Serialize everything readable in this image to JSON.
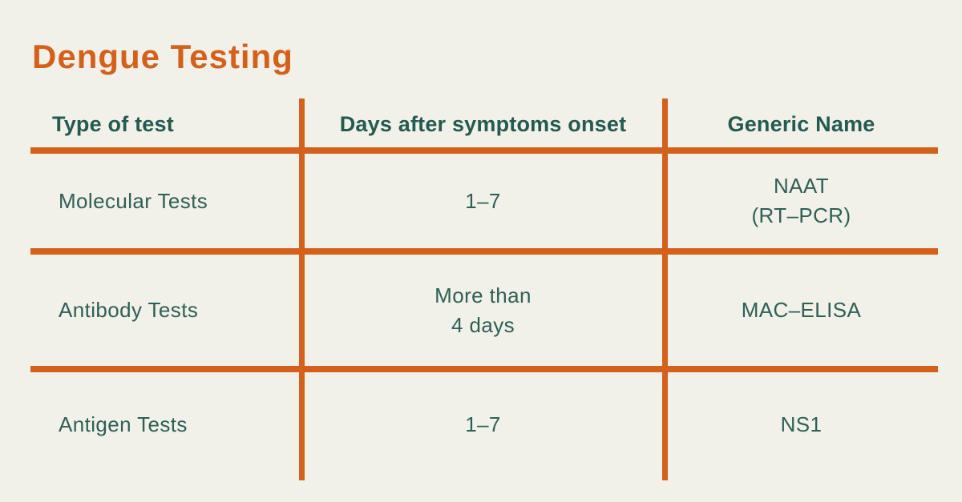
{
  "title": "Dengue Testing",
  "table": {
    "columns": [
      "Type of test",
      "Days after symptoms onset",
      "Generic Name"
    ],
    "rows": [
      [
        "Molecular Tests",
        "1–7",
        "NAAT\n(RT–PCR)"
      ],
      [
        "Antibody Tests",
        "More than\n4 days",
        "MAC–ELISA"
      ],
      [
        "Antigen Tests",
        "1–7",
        "NS1"
      ]
    ]
  },
  "colors": {
    "background": "#F2F1E9",
    "accent_orange": "#D4611B",
    "header_teal": "#245A52",
    "body_teal": "#2E5F57"
  }
}
